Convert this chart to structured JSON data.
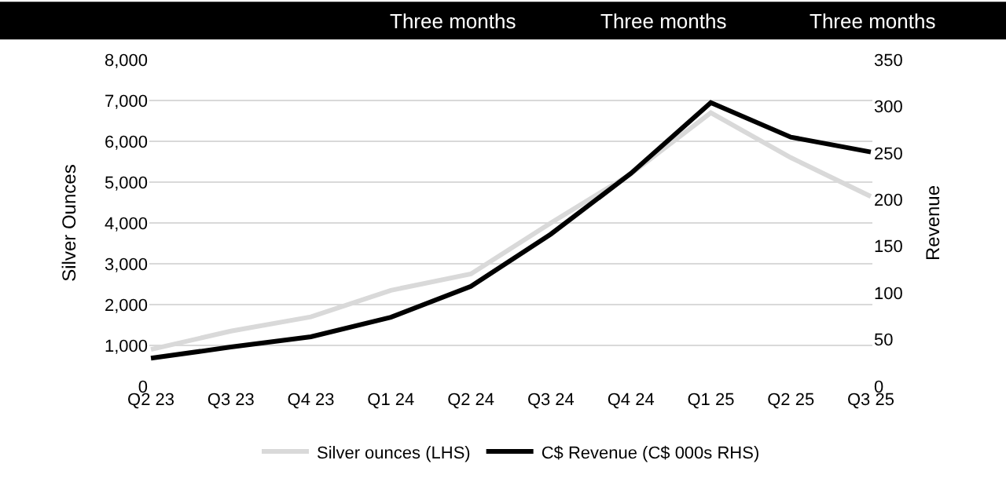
{
  "chart_data": {
    "type": "line",
    "annotations": [
      "Three months",
      "Three months",
      "Three months"
    ],
    "ylabel": "Silver Ounces",
    "y2label": "Revenue",
    "categories": [
      "Q2 23",
      "Q3 23",
      "Q4 23",
      "Q1 24",
      "Q2 24",
      "Q3 24",
      "Q4 24",
      "Q1 25",
      "Q2 25",
      "Q3 25"
    ],
    "series": [
      {
        "name": "Silver ounces (LHS)",
        "color": "#d9d9d9",
        "values": [
          900,
          1350,
          1700,
          2350,
          2750,
          4000,
          5200,
          6700,
          5600,
          4650
        ]
      },
      {
        "name": "C$ Revenue (C$ 000s RHS)",
        "color": "#000000",
        "axis": "y2",
        "values": [
          30,
          42,
          53,
          74,
          107,
          163,
          228,
          304,
          267,
          251
        ]
      }
    ],
    "ylim": [
      0,
      8000
    ],
    "yticks": [
      {
        "value": 0,
        "label": "0"
      },
      {
        "value": 1000,
        "label": "1,000"
      },
      {
        "value": 2000,
        "label": "2,000"
      },
      {
        "value": 3000,
        "label": "3,000"
      },
      {
        "value": 4000,
        "label": "4,000"
      },
      {
        "value": 5000,
        "label": "5,000"
      },
      {
        "value": 6000,
        "label": "6,000"
      },
      {
        "value": 7000,
        "label": "7,000"
      },
      {
        "value": 8000,
        "label": "8,000"
      }
    ],
    "y2lim": [
      0,
      350
    ],
    "y2ticks": [
      0,
      50,
      100,
      150,
      200,
      250,
      300,
      350
    ],
    "grid": "y",
    "legend": "bottom",
    "marker": "none",
    "line_style": "solid"
  }
}
